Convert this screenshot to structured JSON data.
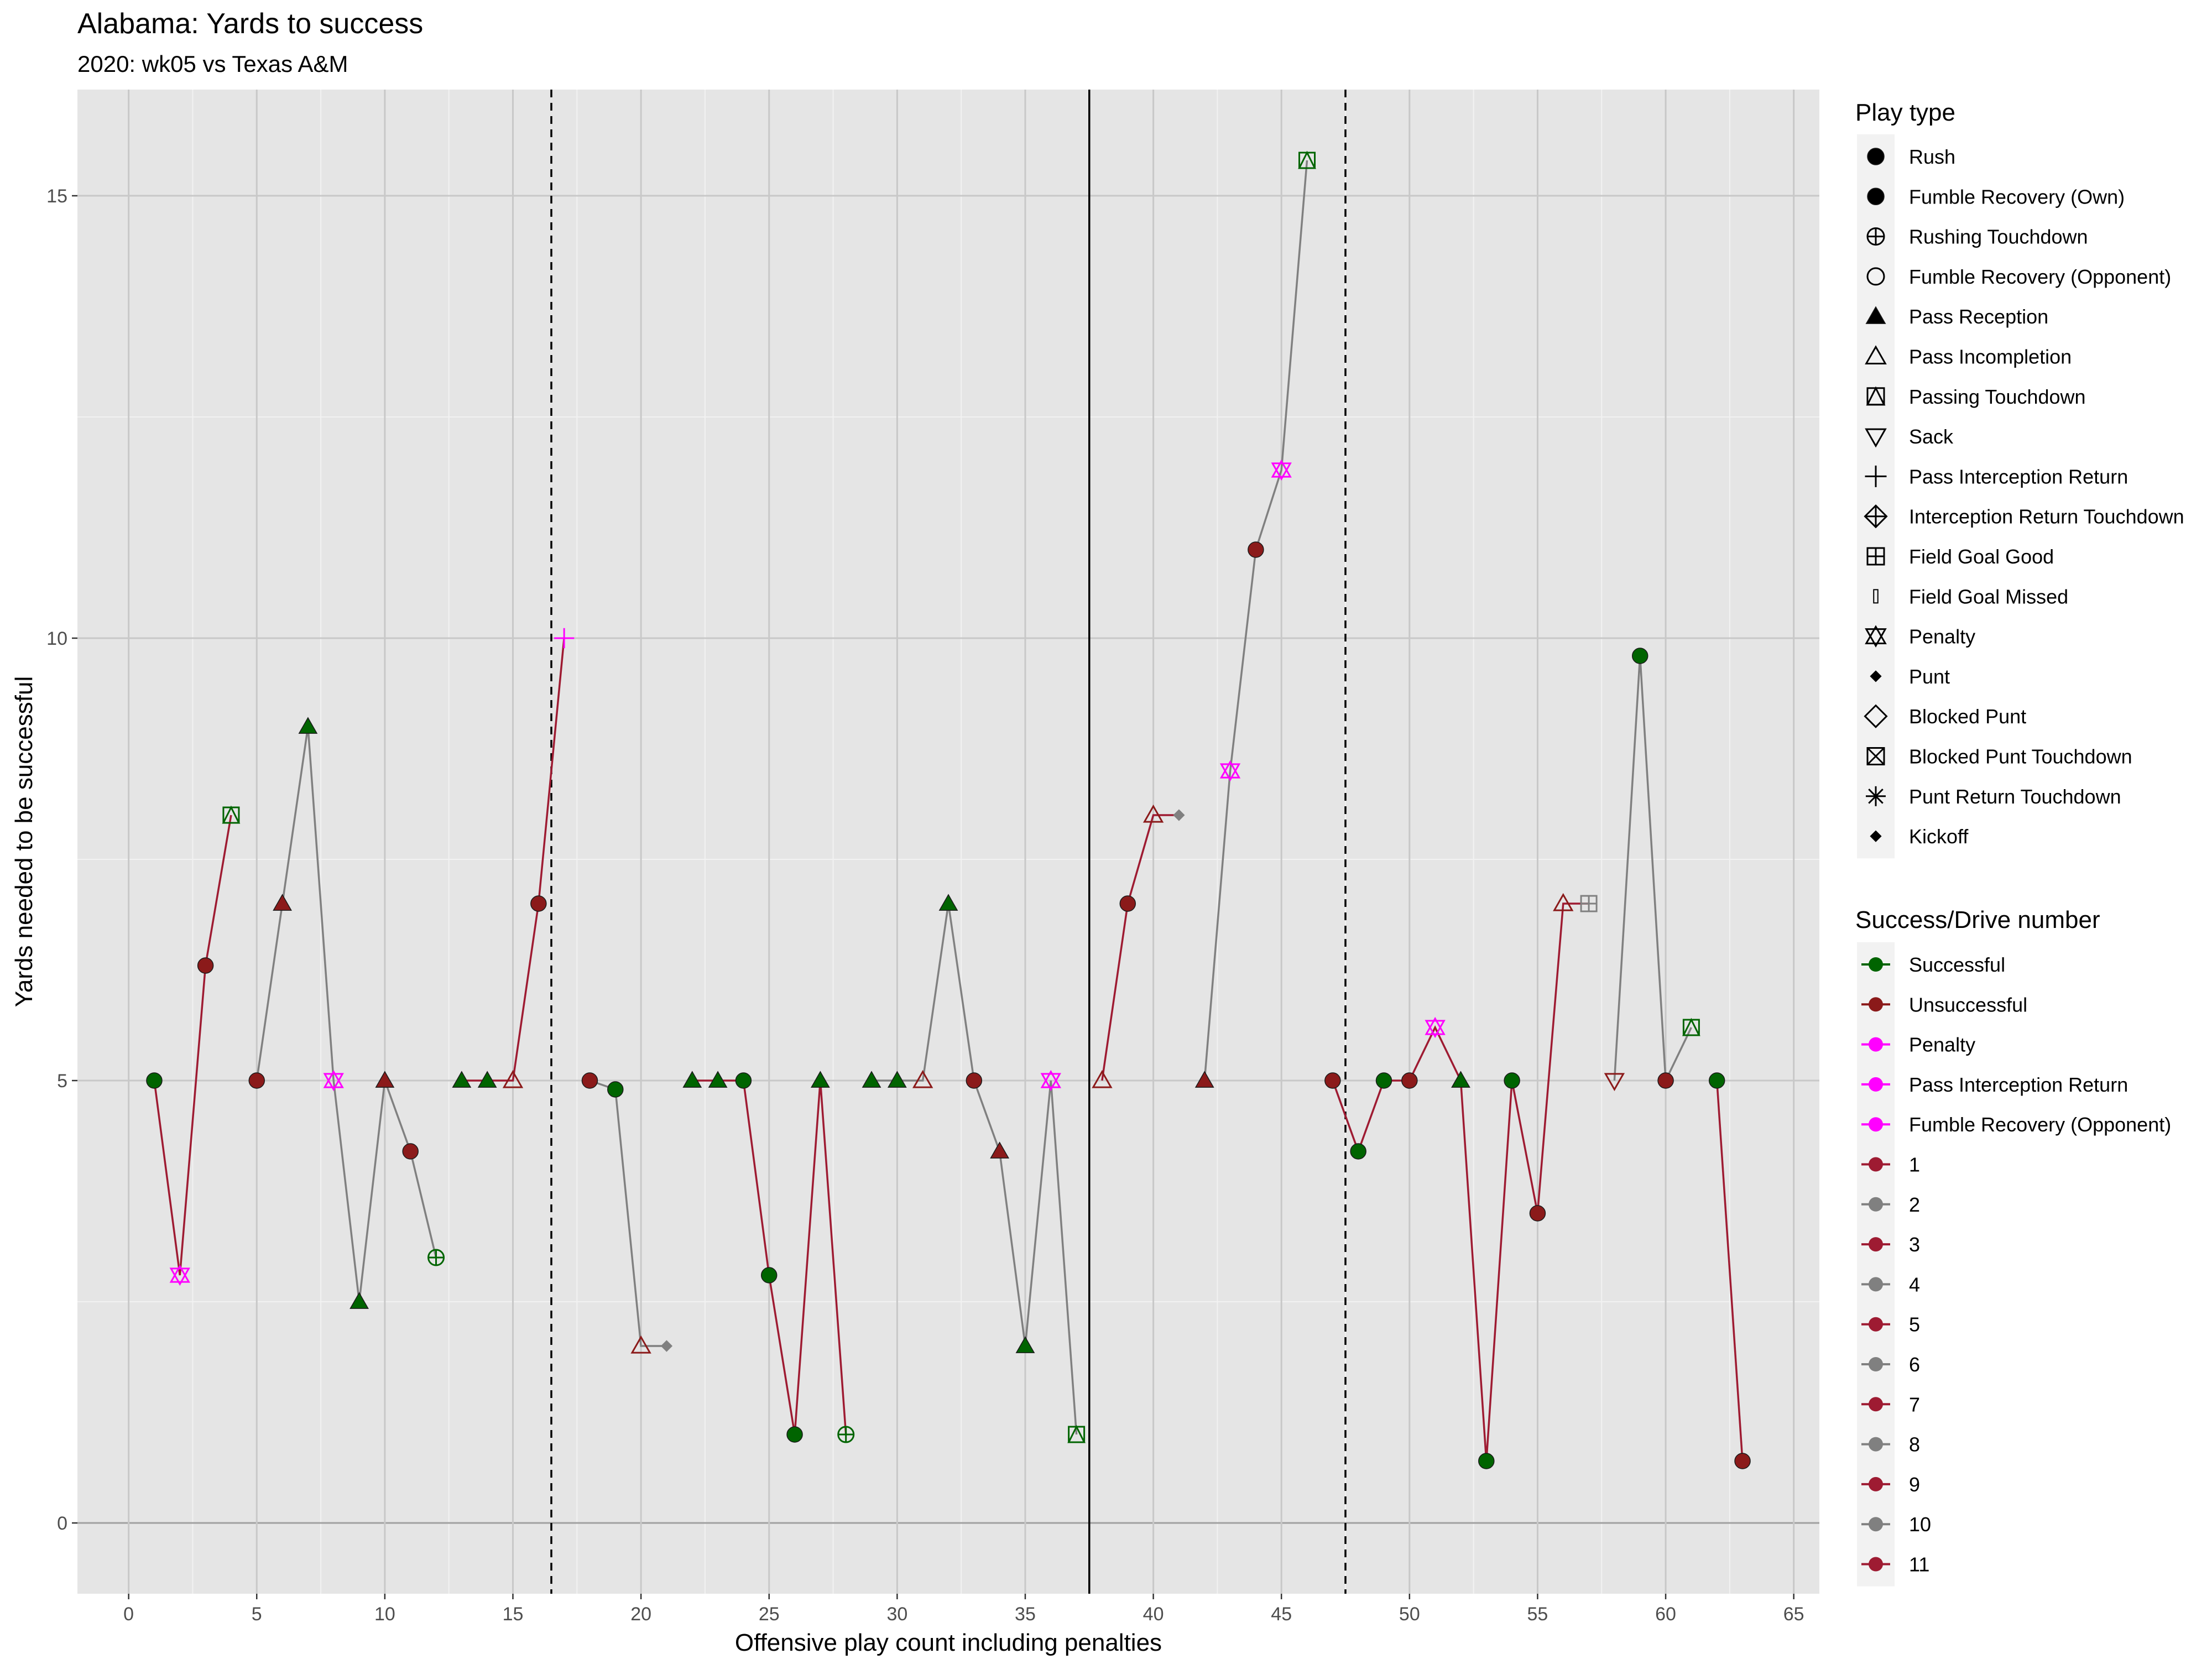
{
  "chart_data": {
    "type": "scatter",
    "title": "Alabama: Yards to success",
    "subtitle": "2020: wk05 vs Texas A&M",
    "xlabel": "Offensive play count including penalties",
    "ylabel": "Yards needed to be successful",
    "xlim": [
      -2,
      66
    ],
    "ylim": [
      -0.8,
      16.2
    ],
    "x_ticks": [
      0,
      5,
      10,
      15,
      20,
      25,
      30,
      35,
      40,
      45,
      50,
      55,
      60,
      65
    ],
    "y_ticks": [
      0,
      5,
      10,
      15
    ],
    "grid": true,
    "half_line_x": 37.5,
    "quarter_lines_x": [
      16.5,
      47.5
    ],
    "colors": {
      "successful": "#006400",
      "unsuccessful": "#8B1A1A",
      "penalty": "#FF00FF",
      "odd_drive": "#9E1B32",
      "even_drive": "#808080",
      "panel": "#E5E5E5",
      "grid_major": "#C8C8C8"
    },
    "drives": [
      {
        "drive": 1,
        "points": [
          [
            1,
            5
          ],
          [
            2,
            2.8
          ],
          [
            3,
            6.3
          ],
          [
            4,
            8
          ]
        ]
      },
      {
        "drive": 2,
        "points": [
          [
            5,
            5
          ],
          [
            6,
            7
          ],
          [
            7,
            9
          ],
          [
            8,
            5
          ],
          [
            9,
            2.5
          ],
          [
            10,
            5
          ],
          [
            11,
            4.2
          ],
          [
            12,
            3
          ]
        ]
      },
      {
        "drive": 3,
        "points": [
          [
            13,
            5
          ],
          [
            14,
            5
          ],
          [
            15,
            5
          ],
          [
            16,
            7
          ],
          [
            17,
            10
          ]
        ]
      },
      {
        "drive": 4,
        "points": [
          [
            18,
            5
          ],
          [
            19,
            4.9
          ],
          [
            20,
            2
          ],
          [
            21,
            2
          ]
        ]
      },
      {
        "drive": 5,
        "points": [
          [
            22,
            5
          ],
          [
            23,
            5
          ],
          [
            24,
            5
          ],
          [
            25,
            2.8
          ],
          [
            26,
            1
          ],
          [
            27,
            5
          ],
          [
            28,
            1
          ]
        ]
      },
      {
        "drive": 6,
        "points": [
          [
            29,
            5
          ],
          [
            30,
            5
          ],
          [
            31,
            5
          ],
          [
            32,
            7
          ],
          [
            33,
            5
          ],
          [
            34,
            4.2
          ],
          [
            35,
            2
          ],
          [
            36,
            5
          ],
          [
            37,
            1
          ]
        ]
      },
      {
        "drive": 7,
        "points": [
          [
            38,
            5
          ],
          [
            39,
            7
          ],
          [
            40,
            8
          ],
          [
            41,
            8
          ]
        ]
      },
      {
        "drive": 8,
        "points": [
          [
            42,
            5
          ],
          [
            43,
            8.5
          ],
          [
            44,
            11
          ],
          [
            45,
            11.9
          ],
          [
            46,
            15.4
          ]
        ]
      },
      {
        "drive": 9,
        "points": [
          [
            47,
            5
          ],
          [
            48,
            4.2
          ],
          [
            49,
            5
          ],
          [
            50,
            5
          ],
          [
            51,
            5.6
          ],
          [
            52,
            5
          ],
          [
            53,
            0.7
          ],
          [
            54,
            5
          ],
          [
            55,
            3.5
          ],
          [
            56,
            7
          ],
          [
            57,
            7
          ]
        ]
      },
      {
        "drive": 10,
        "points": [
          [
            58,
            5
          ],
          [
            59,
            9.8
          ],
          [
            60,
            5
          ],
          [
            61,
            5.6
          ]
        ]
      },
      {
        "drive": 11,
        "points": [
          [
            62,
            5
          ],
          [
            63,
            0.7
          ]
        ]
      }
    ],
    "plays": [
      {
        "x": 1,
        "y": 5,
        "type": "Rush",
        "result": "Successful"
      },
      {
        "x": 2,
        "y": 2.8,
        "type": "Penalty",
        "result": "Penalty"
      },
      {
        "x": 3,
        "y": 6.3,
        "type": "Rush",
        "result": "Unsuccessful"
      },
      {
        "x": 4,
        "y": 8,
        "type": "Passing Touchdown",
        "result": "Successful"
      },
      {
        "x": 5,
        "y": 5,
        "type": "Rush",
        "result": "Unsuccessful"
      },
      {
        "x": 6,
        "y": 7,
        "type": "Pass Reception",
        "result": "Unsuccessful"
      },
      {
        "x": 7,
        "y": 9,
        "type": "Pass Reception",
        "result": "Successful"
      },
      {
        "x": 8,
        "y": 5,
        "type": "Penalty",
        "result": "Penalty"
      },
      {
        "x": 9,
        "y": 2.5,
        "type": "Pass Reception",
        "result": "Successful"
      },
      {
        "x": 10,
        "y": 5,
        "type": "Pass Reception",
        "result": "Unsuccessful"
      },
      {
        "x": 11,
        "y": 4.2,
        "type": "Rush",
        "result": "Unsuccessful"
      },
      {
        "x": 12,
        "y": 3,
        "type": "Rushing Touchdown",
        "result": "Successful"
      },
      {
        "x": 13,
        "y": 5,
        "type": "Pass Reception",
        "result": "Successful"
      },
      {
        "x": 14,
        "y": 5,
        "type": "Pass Reception",
        "result": "Successful"
      },
      {
        "x": 15,
        "y": 5,
        "type": "Pass Incompletion",
        "result": "Unsuccessful"
      },
      {
        "x": 16,
        "y": 7,
        "type": "Rush",
        "result": "Unsuccessful"
      },
      {
        "x": 17,
        "y": 10,
        "type": "Pass Interception Return",
        "result": "Pass Interception Return"
      },
      {
        "x": 18,
        "y": 5,
        "type": "Rush",
        "result": "Unsuccessful"
      },
      {
        "x": 19,
        "y": 4.9,
        "type": "Rush",
        "result": "Successful"
      },
      {
        "x": 20,
        "y": 2,
        "type": "Pass Incompletion",
        "result": "Unsuccessful"
      },
      {
        "x": 21,
        "y": 2,
        "type": "Punt",
        "result": "Drive 4"
      },
      {
        "x": 22,
        "y": 5,
        "type": "Pass Reception",
        "result": "Successful"
      },
      {
        "x": 23,
        "y": 5,
        "type": "Pass Reception",
        "result": "Successful"
      },
      {
        "x": 24,
        "y": 5,
        "type": "Rush",
        "result": "Successful"
      },
      {
        "x": 25,
        "y": 2.8,
        "type": "Rush",
        "result": "Successful"
      },
      {
        "x": 26,
        "y": 1,
        "type": "Rush",
        "result": "Successful"
      },
      {
        "x": 27,
        "y": 5,
        "type": "Pass Reception",
        "result": "Successful"
      },
      {
        "x": 28,
        "y": 1,
        "type": "Rushing Touchdown",
        "result": "Successful"
      },
      {
        "x": 29,
        "y": 5,
        "type": "Pass Reception",
        "result": "Successful"
      },
      {
        "x": 30,
        "y": 5,
        "type": "Pass Reception",
        "result": "Successful"
      },
      {
        "x": 31,
        "y": 5,
        "type": "Pass Incompletion",
        "result": "Unsuccessful"
      },
      {
        "x": 32,
        "y": 7,
        "type": "Pass Reception",
        "result": "Successful"
      },
      {
        "x": 33,
        "y": 5,
        "type": "Rush",
        "result": "Unsuccessful"
      },
      {
        "x": 34,
        "y": 4.2,
        "type": "Pass Reception",
        "result": "Unsuccessful"
      },
      {
        "x": 35,
        "y": 2,
        "type": "Pass Reception",
        "result": "Successful"
      },
      {
        "x": 36,
        "y": 5,
        "type": "Penalty",
        "result": "Penalty"
      },
      {
        "x": 37,
        "y": 1,
        "type": "Passing Touchdown",
        "result": "Successful"
      },
      {
        "x": 38,
        "y": 5,
        "type": "Pass Incompletion",
        "result": "Unsuccessful"
      },
      {
        "x": 39,
        "y": 7,
        "type": "Rush",
        "result": "Unsuccessful"
      },
      {
        "x": 40,
        "y": 8,
        "type": "Pass Incompletion",
        "result": "Unsuccessful"
      },
      {
        "x": 41,
        "y": 8,
        "type": "Punt",
        "result": "Drive 8"
      },
      {
        "x": 42,
        "y": 5,
        "type": "Pass Reception",
        "result": "Unsuccessful"
      },
      {
        "x": 43,
        "y": 8.5,
        "type": "Penalty",
        "result": "Penalty"
      },
      {
        "x": 44,
        "y": 11,
        "type": "Rush",
        "result": "Unsuccessful"
      },
      {
        "x": 45,
        "y": 11.9,
        "type": "Penalty",
        "result": "Penalty"
      },
      {
        "x": 46,
        "y": 15.4,
        "type": "Passing Touchdown",
        "result": "Successful"
      },
      {
        "x": 47,
        "y": 5,
        "type": "Rush",
        "result": "Unsuccessful"
      },
      {
        "x": 48,
        "y": 4.2,
        "type": "Rush",
        "result": "Successful"
      },
      {
        "x": 49,
        "y": 5,
        "type": "Rush",
        "result": "Successful"
      },
      {
        "x": 50,
        "y": 5,
        "type": "Rush",
        "result": "Unsuccessful"
      },
      {
        "x": 51,
        "y": 5.6,
        "type": "Penalty",
        "result": "Penalty"
      },
      {
        "x": 52,
        "y": 5,
        "type": "Pass Reception",
        "result": "Successful"
      },
      {
        "x": 53,
        "y": 0.7,
        "type": "Rush",
        "result": "Successful"
      },
      {
        "x": 54,
        "y": 5,
        "type": "Rush",
        "result": "Successful"
      },
      {
        "x": 55,
        "y": 3.5,
        "type": "Rush",
        "result": "Unsuccessful"
      },
      {
        "x": 56,
        "y": 7,
        "type": "Pass Incompletion",
        "result": "Unsuccessful"
      },
      {
        "x": 57,
        "y": 7,
        "type": "Field Goal Good",
        "result": "Drive 10"
      },
      {
        "x": 58,
        "y": 5,
        "type": "Sack",
        "result": "Unsuccessful"
      },
      {
        "x": 59,
        "y": 9.8,
        "type": "Rush",
        "result": "Successful"
      },
      {
        "x": 60,
        "y": 5,
        "type": "Rush",
        "result": "Unsuccessful"
      },
      {
        "x": 61,
        "y": 5.6,
        "type": "Passing Touchdown",
        "result": "Successful"
      },
      {
        "x": 62,
        "y": 5,
        "type": "Rush",
        "result": "Successful"
      },
      {
        "x": 63,
        "y": 0.7,
        "type": "Rush",
        "result": "Unsuccessful"
      }
    ],
    "legend_shape": {
      "title": "Play type",
      "position": "right",
      "items": [
        {
          "label": "Rush",
          "shape": "filled-circle"
        },
        {
          "label": "Fumble Recovery (Own)",
          "shape": "filled-circle"
        },
        {
          "label": "Rushing Touchdown",
          "shape": "circle-plus"
        },
        {
          "label": "Fumble Recovery (Opponent)",
          "shape": "open-circle"
        },
        {
          "label": "Pass Reception",
          "shape": "filled-triangle"
        },
        {
          "label": "Pass Incompletion",
          "shape": "open-triangle"
        },
        {
          "label": "Passing Touchdown",
          "shape": "square-triangle"
        },
        {
          "label": "Sack",
          "shape": "open-triangle-down"
        },
        {
          "label": "Pass Interception Return",
          "shape": "plus"
        },
        {
          "label": "Interception Return Touchdown",
          "shape": "diamond-plus"
        },
        {
          "label": "Field Goal Good",
          "shape": "square-plus"
        },
        {
          "label": "Field Goal Missed",
          "shape": "small-bar"
        },
        {
          "label": "Penalty",
          "shape": "star-of-david"
        },
        {
          "label": "Punt",
          "shape": "filled-diamond"
        },
        {
          "label": "Blocked Punt",
          "shape": "open-diamond"
        },
        {
          "label": "Blocked Punt Touchdown",
          "shape": "square-x"
        },
        {
          "label": "Punt Return Touchdown",
          "shape": "asterisk"
        },
        {
          "label": "Kickoff",
          "shape": "filled-diamond"
        }
      ]
    },
    "legend_color": {
      "title": "Success/Drive number",
      "position": "right",
      "items": [
        {
          "label": "Successful",
          "color": "#006400"
        },
        {
          "label": "Unsuccessful",
          "color": "#8B1A1A"
        },
        {
          "label": "Penalty",
          "color": "#FF00FF"
        },
        {
          "label": "Pass Interception Return",
          "color": "#FF00FF"
        },
        {
          "label": "Fumble Recovery (Opponent)",
          "color": "#FF00FF"
        },
        {
          "label": "1",
          "color": "#9E1B32"
        },
        {
          "label": "2",
          "color": "#808080"
        },
        {
          "label": "3",
          "color": "#9E1B32"
        },
        {
          "label": "4",
          "color": "#808080"
        },
        {
          "label": "5",
          "color": "#9E1B32"
        },
        {
          "label": "6",
          "color": "#808080"
        },
        {
          "label": "7",
          "color": "#9E1B32"
        },
        {
          "label": "8",
          "color": "#808080"
        },
        {
          "label": "9",
          "color": "#9E1B32"
        },
        {
          "label": "10",
          "color": "#808080"
        },
        {
          "label": "11",
          "color": "#9E1B32"
        }
      ]
    }
  }
}
